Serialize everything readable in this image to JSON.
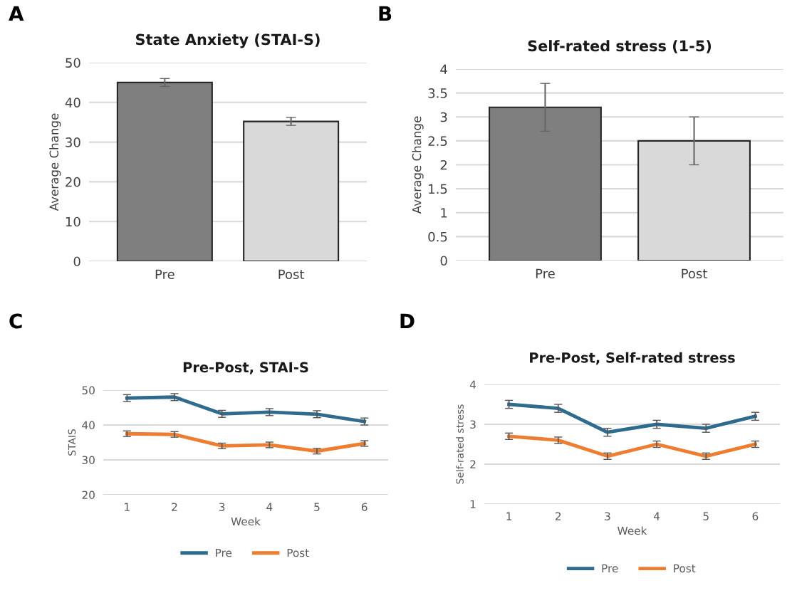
{
  "chart_data": [
    {
      "type": "bar",
      "title": "State Anxiety (STAI-S)",
      "ylabel": "Average Change",
      "annotations": [
        "A"
      ],
      "categories": [
        "Pre",
        "Post"
      ],
      "values": [
        45,
        35.2
      ],
      "errors": [
        1,
        1
      ],
      "colors": [
        "#7f7f7f",
        "#d9d9d9"
      ],
      "ylim": [
        0,
        50
      ],
      "yticks": [
        0,
        10,
        20,
        30,
        40,
        50
      ],
      "grid": "y",
      "legend": false
    },
    {
      "type": "bar",
      "title": "Self-rated stress (1-5)",
      "ylabel": "Average Change",
      "annotations": [
        "B"
      ],
      "categories": [
        "Pre",
        "Post"
      ],
      "values": [
        3.2,
        2.5
      ],
      "errors": [
        0.5,
        0.5
      ],
      "colors": [
        "#7f7f7f",
        "#d9d9d9"
      ],
      "ylim": [
        0,
        4
      ],
      "yticks": [
        0,
        0.5,
        1,
        1.5,
        2,
        2.5,
        3,
        3.5,
        4
      ],
      "grid": "y",
      "legend": false
    },
    {
      "type": "line",
      "title": "Pre-Post, STAI-S",
      "ylabel": "STAIS",
      "xlabel": "Week",
      "annotations": [
        "C"
      ],
      "categories": [
        "1",
        "2",
        "3",
        "4",
        "5",
        "6"
      ],
      "series": [
        {
          "name": "Pre",
          "color": "#2e6b8c",
          "values": [
            47.7,
            48,
            43.2,
            43.7,
            43.1,
            41
          ],
          "errors": [
            1,
            1,
            1,
            1,
            1,
            1
          ]
        },
        {
          "name": "Post",
          "color": "#ed7d31",
          "values": [
            37.5,
            37.3,
            34,
            34.3,
            32.5,
            34.7
          ],
          "errors": [
            0.8,
            0.8,
            0.8,
            0.8,
            0.8,
            0.8
          ]
        }
      ],
      "ylim": [
        20,
        50
      ],
      "yticks": [
        20,
        30,
        40,
        50
      ],
      "grid": "y",
      "legend": "bottom",
      "marker": "none",
      "line_style": "solid"
    },
    {
      "type": "line",
      "title": "Pre-Post, Self-rated stress",
      "ylabel": "Self-rated stress",
      "xlabel": "Week",
      "annotations": [
        "D"
      ],
      "categories": [
        "1",
        "2",
        "3",
        "4",
        "5",
        "6"
      ],
      "series": [
        {
          "name": "Pre",
          "color": "#2e6b8c",
          "values": [
            3.5,
            3.4,
            2.8,
            3.0,
            2.9,
            3.2
          ],
          "errors": [
            0.1,
            0.1,
            0.1,
            0.1,
            0.1,
            0.1
          ]
        },
        {
          "name": "Post",
          "color": "#ed7d31",
          "values": [
            2.7,
            2.6,
            2.2,
            2.5,
            2.2,
            2.5
          ],
          "errors": [
            0.08,
            0.08,
            0.08,
            0.08,
            0.08,
            0.08
          ]
        }
      ],
      "ylim": [
        1,
        4
      ],
      "yticks": [
        1,
        2,
        3,
        4
      ],
      "grid": "y",
      "legend": "bottom",
      "marker": "none",
      "line_style": "solid"
    }
  ]
}
